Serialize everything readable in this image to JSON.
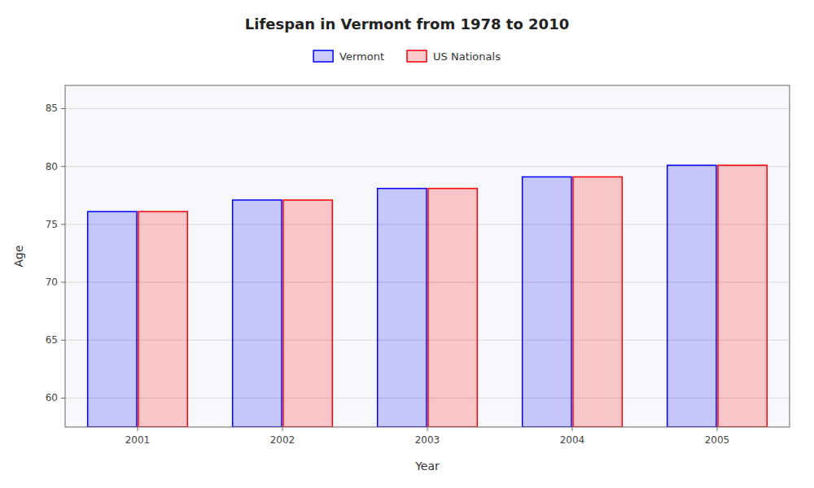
{
  "chart_data": {
    "type": "bar",
    "title": "Lifespan in Vermont from 1978 to 2010",
    "xlabel": "Year",
    "ylabel": "Age",
    "categories": [
      "2001",
      "2002",
      "2003",
      "2004",
      "2005"
    ],
    "series": [
      {
        "name": "Vermont",
        "color": "#0000ff",
        "values": [
          76.1,
          77.1,
          78.1,
          79.1,
          80.1
        ]
      },
      {
        "name": "US Nationals",
        "color": "#ff0000",
        "values": [
          76.1,
          77.1,
          78.1,
          79.1,
          80.1
        ]
      }
    ],
    "ylim": [
      57.5,
      87
    ],
    "yticks": [
      60,
      65,
      70,
      75,
      80,
      85
    ],
    "grid": true,
    "legend": "top"
  }
}
